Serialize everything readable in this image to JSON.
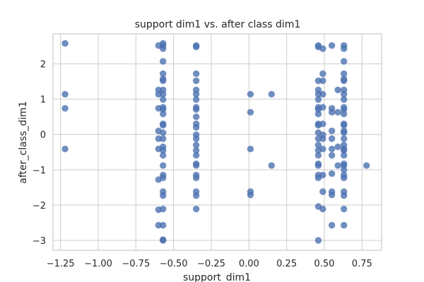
{
  "chart_data": {
    "type": "scatter",
    "title": "support dim1 vs. after class dim1",
    "xlabel": "support_dim1",
    "ylabel": "after_class_dim1",
    "xlim": [
      -1.3,
      0.88
    ],
    "ylim": [
      -3.28,
      2.85
    ],
    "xticks": [
      -1.25,
      -1.0,
      -0.75,
      -0.5,
      -0.25,
      0.0,
      0.25,
      0.5,
      0.75
    ],
    "xtick_labels": [
      "−1.25",
      "−1.00",
      "−0.75",
      "−0.50",
      "−0.25",
      "0.00",
      "0.25",
      "0.50",
      "0.75"
    ],
    "yticks": [
      -3,
      -2,
      -1,
      0,
      1,
      2
    ],
    "ytick_labels": [
      "−3",
      "−2",
      "−1",
      "0",
      "1",
      "2"
    ],
    "grid": true,
    "point_color": "#4c72b0",
    "series": [
      {
        "points": [
          [
            -1.22,
            2.58
          ],
          [
            -1.22,
            1.14
          ],
          [
            -1.22,
            0.74
          ],
          [
            -1.22,
            -0.41
          ],
          [
            -0.6,
            2.52
          ],
          [
            -0.6,
            1.26
          ],
          [
            -0.6,
            1.14
          ],
          [
            -0.6,
            0.74
          ],
          [
            -0.6,
            0.1
          ],
          [
            -0.6,
            -0.12
          ],
          [
            -0.6,
            -0.41
          ],
          [
            -0.6,
            -1.28
          ],
          [
            -0.6,
            -2.13
          ],
          [
            -0.6,
            -2.57
          ],
          [
            -0.57,
            2.58
          ],
          [
            -0.57,
            2.52
          ],
          [
            -0.57,
            2.43
          ],
          [
            -0.57,
            2.07
          ],
          [
            -0.57,
            1.72
          ],
          [
            -0.57,
            1.57
          ],
          [
            -0.57,
            1.52
          ],
          [
            -0.57,
            1.26
          ],
          [
            -0.57,
            1.14
          ],
          [
            -0.57,
            0.99
          ],
          [
            -0.57,
            0.77
          ],
          [
            -0.57,
            0.71
          ],
          [
            -0.57,
            0.58
          ],
          [
            -0.57,
            0.3
          ],
          [
            -0.57,
            0.26
          ],
          [
            -0.57,
            0.05
          ],
          [
            -0.57,
            -0.12
          ],
          [
            -0.57,
            -0.35
          ],
          [
            -0.57,
            -0.45
          ],
          [
            -0.57,
            -0.59
          ],
          [
            -0.57,
            -0.88
          ],
          [
            -0.57,
            -1.15
          ],
          [
            -0.57,
            -1.23
          ],
          [
            -0.57,
            -1.62
          ],
          [
            -0.57,
            -1.73
          ],
          [
            -0.57,
            -2.11
          ],
          [
            -0.57,
            -2.57
          ],
          [
            -0.57,
            -2.98
          ],
          [
            -0.57,
            -3.0
          ],
          [
            -0.35,
            2.52
          ],
          [
            -0.35,
            2.48
          ],
          [
            -0.35,
            1.72
          ],
          [
            -0.35,
            1.52
          ],
          [
            -0.35,
            1.26
          ],
          [
            -0.35,
            1.14
          ],
          [
            -0.35,
            0.99
          ],
          [
            -0.35,
            0.77
          ],
          [
            -0.35,
            0.71
          ],
          [
            -0.35,
            0.5
          ],
          [
            -0.35,
            0.3
          ],
          [
            -0.35,
            0.2
          ],
          [
            -0.35,
            -0.01
          ],
          [
            -0.35,
            -0.12
          ],
          [
            -0.35,
            -0.3
          ],
          [
            -0.35,
            -0.45
          ],
          [
            -0.35,
            -0.59
          ],
          [
            -0.35,
            -0.83
          ],
          [
            -0.35,
            -0.88
          ],
          [
            -0.35,
            -1.15
          ],
          [
            -0.35,
            -1.23
          ],
          [
            -0.35,
            -1.62
          ],
          [
            -0.35,
            -1.73
          ],
          [
            -0.35,
            -2.11
          ],
          [
            0.01,
            1.14
          ],
          [
            0.01,
            0.63
          ],
          [
            0.01,
            -0.41
          ],
          [
            0.01,
            -1.62
          ],
          [
            0.01,
            -1.71
          ],
          [
            0.15,
            1.14
          ],
          [
            0.15,
            -0.88
          ],
          [
            0.46,
            2.52
          ],
          [
            0.46,
            2.48
          ],
          [
            0.46,
            1.52
          ],
          [
            0.46,
            1.26
          ],
          [
            0.46,
            1.14
          ],
          [
            0.46,
            0.99
          ],
          [
            0.46,
            0.77
          ],
          [
            0.46,
            0.71
          ],
          [
            0.46,
            0.58
          ],
          [
            0.46,
            0.3
          ],
          [
            0.46,
            0.26
          ],
          [
            0.46,
            0.05
          ],
          [
            0.46,
            -0.12
          ],
          [
            0.46,
            -0.3
          ],
          [
            0.46,
            -0.45
          ],
          [
            0.46,
            -0.59
          ],
          [
            0.46,
            -0.83
          ],
          [
            0.46,
            -0.88
          ],
          [
            0.46,
            -1.15
          ],
          [
            0.46,
            -1.23
          ],
          [
            0.46,
            -2.04
          ],
          [
            0.46,
            -3.0
          ],
          [
            0.49,
            2.43
          ],
          [
            0.49,
            1.72
          ],
          [
            0.49,
            1.52
          ],
          [
            0.49,
            1.14
          ],
          [
            0.49,
            0.77
          ],
          [
            0.49,
            0.3
          ],
          [
            0.49,
            -0.01
          ],
          [
            0.49,
            -0.12
          ],
          [
            0.49,
            -0.41
          ],
          [
            0.49,
            -1.15
          ],
          [
            0.49,
            -1.62
          ],
          [
            0.49,
            -2.11
          ],
          [
            0.55,
            2.52
          ],
          [
            0.55,
            0.74
          ],
          [
            0.55,
            0.63
          ],
          [
            0.55,
            0.1
          ],
          [
            0.55,
            -0.12
          ],
          [
            0.55,
            -0.41
          ],
          [
            0.55,
            -0.59
          ],
          [
            0.55,
            -1.11
          ],
          [
            0.55,
            -1.62
          ],
          [
            0.55,
            -1.71
          ],
          [
            0.55,
            -2.57
          ],
          [
            0.59,
            1.26
          ],
          [
            0.59,
            0.63
          ],
          [
            0.59,
            -0.35
          ],
          [
            0.59,
            -0.88
          ],
          [
            0.63,
            2.52
          ],
          [
            0.63,
            2.43
          ],
          [
            0.63,
            2.07
          ],
          [
            0.63,
            1.72
          ],
          [
            0.63,
            1.57
          ],
          [
            0.63,
            1.52
          ],
          [
            0.63,
            1.26
          ],
          [
            0.63,
            1.14
          ],
          [
            0.63,
            0.99
          ],
          [
            0.63,
            0.77
          ],
          [
            0.63,
            0.71
          ],
          [
            0.63,
            0.58
          ],
          [
            0.63,
            0.3
          ],
          [
            0.63,
            0.26
          ],
          [
            0.63,
            0.1
          ],
          [
            0.63,
            0.05
          ],
          [
            0.63,
            -0.12
          ],
          [
            0.63,
            -0.3
          ],
          [
            0.63,
            -0.41
          ],
          [
            0.63,
            -0.45
          ],
          [
            0.63,
            -0.59
          ],
          [
            0.63,
            -0.83
          ],
          [
            0.63,
            -0.88
          ],
          [
            0.63,
            -1.0
          ],
          [
            0.63,
            -1.15
          ],
          [
            0.63,
            -1.23
          ],
          [
            0.63,
            -1.62
          ],
          [
            0.63,
            -1.73
          ],
          [
            0.63,
            -2.11
          ],
          [
            0.63,
            -2.57
          ],
          [
            0.78,
            -0.88
          ]
        ]
      }
    ]
  }
}
